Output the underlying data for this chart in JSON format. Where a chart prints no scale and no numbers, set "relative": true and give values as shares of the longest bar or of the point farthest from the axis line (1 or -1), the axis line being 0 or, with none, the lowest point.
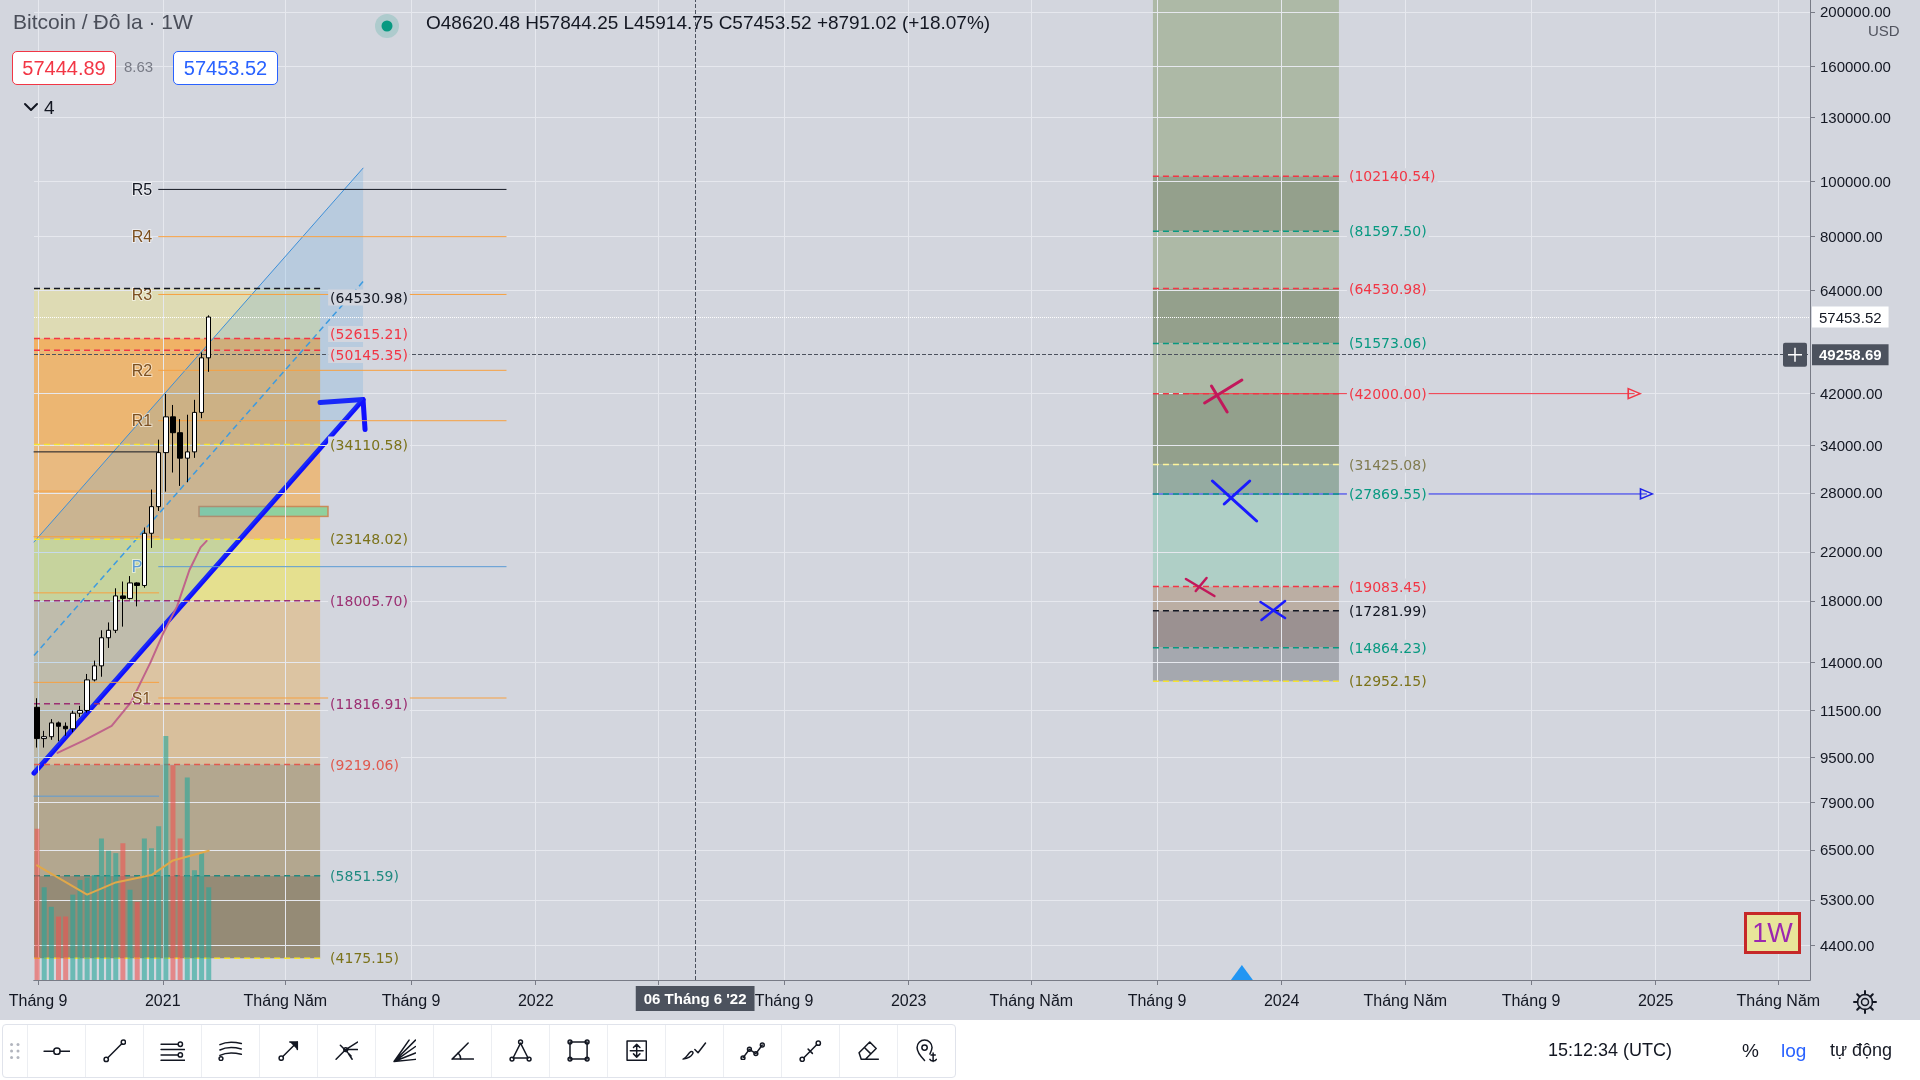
{
  "chart_data": [
    {
      "type": "candlestick",
      "title": "Bitcoin / Đô la · 1W",
      "subtitle": "O48620.48 H57844.25 L45914.75 C57453.52 +8791.02 (+18.07%)",
      "x": [
        "2020-08-31",
        "2020-09-07",
        "2020-09-14",
        "2020-09-21",
        "2020-09-28",
        "2020-10-05",
        "2020-10-12",
        "2020-10-19",
        "2020-10-26",
        "2020-11-02",
        "2020-11-09",
        "2020-11-16",
        "2020-11-23",
        "2020-11-30",
        "2020-12-07",
        "2020-12-14",
        "2020-12-21",
        "2020-12-28",
        "2021-01-04",
        "2021-01-11",
        "2021-01-18",
        "2021-01-25",
        "2021-02-01",
        "2021-02-08",
        "2021-02-15"
      ],
      "ohlc": [
        [
          11650,
          12090,
          9880,
          10250
        ],
        [
          10250,
          10580,
          9880,
          10330
        ],
        [
          10330,
          11100,
          10200,
          10930
        ],
        [
          10930,
          10990,
          10140,
          10780
        ],
        [
          10780,
          10950,
          10370,
          10670
        ],
        [
          10670,
          11490,
          10520,
          11370
        ],
        [
          11370,
          11720,
          11200,
          11500
        ],
        [
          11500,
          13350,
          11400,
          13030
        ],
        [
          13030,
          14100,
          12950,
          13800
        ],
        [
          13800,
          15960,
          13200,
          15480
        ],
        [
          15480,
          16480,
          14850,
          15960
        ],
        [
          15960,
          18950,
          15780,
          18370
        ],
        [
          18370,
          19480,
          16200,
          18180
        ],
        [
          18180,
          19920,
          18100,
          19370
        ],
        [
          19370,
          19420,
          17600,
          19170
        ],
        [
          19170,
          24300,
          19000,
          23730
        ],
        [
          23730,
          28380,
          22350,
          26460
        ],
        [
          26460,
          34800,
          26000,
          33000
        ],
        [
          33000,
          41950,
          28130,
          38200
        ],
        [
          38200,
          40100,
          30420,
          35800
        ],
        [
          35800,
          37850,
          28800,
          32260
        ],
        [
          32260,
          38530,
          29240,
          33100
        ],
        [
          33100,
          40950,
          32300,
          38900
        ],
        [
          38900,
          49700,
          37990,
          48620
        ],
        [
          48620.48,
          57844.25,
          45914.75,
          57453.52
        ]
      ],
      "colors": [
        "#000000",
        "#ffffff",
        "#ffffff",
        "#000000",
        "#000000",
        "#ffffff",
        "#ffffff",
        "#ffffff",
        "#ffffff",
        "#ffffff",
        "#ffffff",
        "#ffffff",
        "#000000",
        "#ffffff",
        "#000000",
        "#ffffff",
        "#ffffff",
        "#ffffff",
        "#ffffff",
        "#000000",
        "#000000",
        "#ffffff",
        "#ffffff",
        "#ffffff",
        "#ffffff"
      ],
      "xlim": [
        "2020-08-28",
        "2025-06-01"
      ],
      "xticks": [
        {
          "value": "2020-09-01",
          "label": "Tháng 9"
        },
        {
          "value": "2021-01-01",
          "label": "2021"
        },
        {
          "value": "2021-05-01",
          "label": "Tháng Năm"
        },
        {
          "value": "2021-09-01",
          "label": "Tháng 9"
        },
        {
          "value": "2022-01-01",
          "label": "2022"
        },
        {
          "value": "2022-05-01",
          "label": null
        },
        {
          "value": "2022-09-01",
          "label": "Tháng 9"
        },
        {
          "value": "2023-01-01",
          "label": "2023"
        },
        {
          "value": "2023-05-01",
          "label": "Tháng Năm"
        },
        {
          "value": "2023-09-01",
          "label": "Tháng 9"
        },
        {
          "value": "2024-01-01",
          "label": "2024"
        },
        {
          "value": "2024-05-01",
          "label": "Tháng Năm"
        },
        {
          "value": "2024-09-01",
          "label": "Tháng 9"
        },
        {
          "value": "2025-01-01",
          "label": "2025"
        },
        {
          "value": "2025-05-01",
          "label": "Tháng Năm"
        }
      ],
      "ylim": [
        3820,
        210000
      ],
      "yticks": [
        {
          "value": 4400,
          "label": "4400.00"
        },
        {
          "value": 5300,
          "label": "5300.00"
        },
        {
          "value": 6500,
          "label": "6500.00"
        },
        {
          "value": 7900,
          "label": "7900.00"
        },
        {
          "value": 9500,
          "label": "9500.00"
        },
        {
          "value": 11500,
          "label": "11500.00"
        },
        {
          "value": 14000,
          "label": "14000.00"
        },
        {
          "value": 18000,
          "label": "18000.00"
        },
        {
          "value": 22000,
          "label": "22000.00"
        },
        {
          "value": 28000,
          "label": "28000.00"
        },
        {
          "value": 34000,
          "label": "34000.00"
        },
        {
          "value": 42000,
          "label": "42000.00"
        },
        {
          "value": 64000,
          "label": "64000.00"
        },
        {
          "value": 80000,
          "label": "80000.00"
        },
        {
          "value": 100000,
          "label": "100000.00"
        },
        {
          "value": 130000,
          "label": "130000.00"
        },
        {
          "value": 160000,
          "label": "160000.00"
        },
        {
          "value": 200000,
          "label": "200000.00"
        }
      ],
      "log": "y",
      "grid": true,
      "series": [
        {
          "type": "line",
          "x": [
            "2020-08-28",
            "2021-07-16"
          ],
          "values": [
            22900,
            105600
          ],
          "color": "#3d8fd8"
        },
        {
          "type": "line",
          "x": [
            "2020-08-28",
            "2021-07-16"
          ],
          "values": [
            14400,
            66400
          ],
          "lower": [
            8900,
            41000
          ],
          "upper": [
            22900,
            105600
          ],
          "color": "#3d9be0",
          "line_style": "dashed"
        },
        {
          "type": "line",
          "x": [
            "2023-09-27",
            "2024-12-11"
          ],
          "values": [
            42000,
            42000
          ],
          "color": "#f23645",
          "marker": "triangle"
        },
        {
          "type": "line",
          "x": [
            "2023-08-28",
            "2024-12-23"
          ],
          "values": [
            27869.55,
            27869.55
          ],
          "color": "#1e22e8",
          "marker": "triangle"
        },
        {
          "type": "line",
          "x": [
            "2020-08-28",
            "2020-12-28"
          ],
          "values": [
            33100,
            33100
          ],
          "color": "#131722"
        },
        {
          "type": "line",
          "x": [
            "2020-08-28",
            "2020-12-28"
          ],
          "values": [
            28200,
            28200
          ],
          "color": "#f7a040"
        },
        {
          "type": "line",
          "x": [
            "2020-08-28",
            "2020-12-28"
          ],
          "values": [
            23400,
            23400
          ],
          "color": "#f7a040"
        },
        {
          "type": "line",
          "x": [
            "2020-08-28",
            "2020-12-28"
          ],
          "values": [
            18600,
            18600
          ],
          "color": "#f7a040"
        },
        {
          "type": "line",
          "x": [
            "2020-08-28",
            "2020-12-28"
          ],
          "values": [
            12900,
            12900
          ],
          "color": "#f7a040"
        },
        {
          "type": "line",
          "x": [
            "2020-08-28",
            "2020-12-28"
          ],
          "values": [
            8100,
            8100
          ],
          "color": "#5b9bd5"
        },
        {
          "type": "line",
          "name": "R5",
          "x": [
            "2020-12-28",
            "2021-12-03"
          ],
          "values": [
            96800,
            96800
          ],
          "color": "#131722"
        },
        {
          "type": "line",
          "name": "R4",
          "x": [
            "2020-12-28",
            "2021-12-03"
          ],
          "values": [
            79800,
            79800
          ],
          "color": "#f7a040"
        },
        {
          "type": "line",
          "name": "R3",
          "x": [
            "2020-12-28",
            "2021-12-03"
          ],
          "values": [
            63000,
            63000
          ],
          "color": "#f7a040"
        },
        {
          "type": "line",
          "name": "R2",
          "x": [
            "2020-12-28",
            "2021-12-03"
          ],
          "values": [
            46200,
            46200
          ],
          "color": "#f7a040"
        },
        {
          "type": "line",
          "name": "R1",
          "x": [
            "2020-12-28",
            "2021-12-03"
          ],
          "values": [
            37600,
            37600
          ],
          "color": "#f7a040"
        },
        {
          "type": "line",
          "name": "P",
          "x": [
            "2020-12-28",
            "2021-12-03"
          ],
          "values": [
            20700,
            20700
          ],
          "color": "#5b9bd5"
        },
        {
          "type": "line",
          "name": "S1",
          "x": [
            "2020-12-28",
            "2021-12-03"
          ],
          "values": [
            12100,
            12100
          ],
          "color": "#f7a040"
        },
        {
          "type": "line",
          "x": [
            "2020-08-28",
            "2021-06-04"
          ],
          "values": [
            64530.98,
            64530.98
          ],
          "value_labels": [
            null,
            "(64530.98)"
          ],
          "color": "#131722",
          "line_style": "dashed"
        },
        {
          "type": "line",
          "x": [
            "2020-08-28",
            "2021-06-04"
          ],
          "values": [
            52615.21,
            52615.21
          ],
          "value_labels": [
            null,
            "(52615.21)"
          ],
          "color": "#f23645",
          "line_style": "dashed"
        },
        {
          "type": "line",
          "x": [
            "2020-08-28",
            "2021-06-04"
          ],
          "values": [
            50145.35,
            50145.35
          ],
          "value_labels": [
            null,
            "(50145.35)"
          ],
          "color": "#f23645",
          "line_style": "dashed"
        },
        {
          "type": "line",
          "x": [
            "2020-08-28",
            "2021-06-04"
          ],
          "values": [
            34110.58,
            34110.58
          ],
          "value_labels": [
            null,
            "(34110.58)"
          ],
          "color": "#f5e332",
          "line_style": "dashed"
        },
        {
          "type": "line",
          "x": [
            "2020-08-28",
            "2021-06-04"
          ],
          "values": [
            23148.02,
            23148.02
          ],
          "value_labels": [
            null,
            "(23148.02)"
          ],
          "color": "#f5e332",
          "line_style": "dashed"
        },
        {
          "type": "line",
          "x": [
            "2020-08-28",
            "2021-06-04"
          ],
          "values": [
            18005.7,
            18005.7
          ],
          "value_labels": [
            null,
            "(18005.70)"
          ],
          "color": "#9b2f72",
          "line_style": "dashed"
        },
        {
          "type": "line",
          "x": [
            "2020-08-28",
            "2021-06-04"
          ],
          "values": [
            11816.91,
            11816.91
          ],
          "value_labels": [
            null,
            "(11816.91)"
          ],
          "color": "#9b2f72",
          "line_style": "dashed"
        },
        {
          "type": "line",
          "x": [
            "2020-08-28",
            "2021-06-04"
          ],
          "values": [
            9219.06,
            9219.06
          ],
          "value_labels": [
            null,
            "(9219.06)"
          ],
          "color": "#e05a4f",
          "line_style": "dashed"
        },
        {
          "type": "line",
          "x": [
            "2020-08-28",
            "2021-06-04"
          ],
          "values": [
            5851.59,
            5851.59
          ],
          "value_labels": [
            null,
            "(5851.59)"
          ],
          "color": "#1f8a80",
          "line_style": "dashed"
        },
        {
          "type": "line",
          "x": [
            "2020-08-28",
            "2021-06-04"
          ],
          "values": [
            4175.15,
            4175.15
          ],
          "value_labels": [
            null,
            "(4175.15)"
          ],
          "color": "#f5e332",
          "line_style": "dashed"
        },
        {
          "type": "line",
          "x": [
            "2023-08-28",
            "2024-02-26"
          ],
          "values": [
            102140.54,
            102140.54
          ],
          "value_labels": [
            null,
            "(102140.54)"
          ],
          "color": "#f23645",
          "line_style": "dashed"
        },
        {
          "type": "line",
          "x": [
            "2023-08-28",
            "2024-02-26"
          ],
          "values": [
            81597.5,
            81597.5
          ],
          "value_labels": [
            null,
            "(81597.50)"
          ],
          "color": "#089981",
          "line_style": "dashed"
        },
        {
          "type": "line",
          "x": [
            "2023-08-28",
            "2024-02-26"
          ],
          "values": [
            64530.98,
            64530.98
          ],
          "value_labels": [
            null,
            "(64530.98)"
          ],
          "color": "#f23645",
          "line_style": "dashed"
        },
        {
          "type": "line",
          "x": [
            "2023-08-28",
            "2024-02-26"
          ],
          "values": [
            51573.06,
            51573.06
          ],
          "value_labels": [
            null,
            "(51573.06)"
          ],
          "color": "#089981",
          "line_style": "dashed"
        },
        {
          "type": "line",
          "x": [
            "2023-08-28",
            "2024-02-26"
          ],
          "values": [
            42000,
            42000
          ],
          "value_labels": [
            null,
            "(42000.00)"
          ],
          "color": "#f23645",
          "line_style": "dashed"
        },
        {
          "type": "line",
          "x": [
            "2023-08-28",
            "2024-02-26"
          ],
          "values": [
            31425.08,
            31425.08
          ],
          "value_labels": [
            null,
            "(31425.08)"
          ],
          "color": "#fff59d",
          "line_style": "dashed"
        },
        {
          "type": "line",
          "x": [
            "2023-08-28",
            "2024-02-26"
          ],
          "values": [
            27869.55,
            27869.55
          ],
          "value_labels": [
            null,
            "(27869.55)"
          ],
          "color": "#089981",
          "line_style": "dashed"
        },
        {
          "type": "line",
          "x": [
            "2023-08-28",
            "2024-02-26"
          ],
          "values": [
            19083.45,
            19083.45
          ],
          "value_labels": [
            null,
            "(19083.45)"
          ],
          "color": "#f23645",
          "line_style": "dashed"
        },
        {
          "type": "line",
          "x": [
            "2023-08-28",
            "2024-02-26"
          ],
          "values": [
            17281.99,
            17281.99
          ],
          "value_labels": [
            null,
            "(17281.99)"
          ],
          "color": "#131722",
          "line_style": "dashed"
        },
        {
          "type": "line",
          "x": [
            "2023-08-28",
            "2024-02-26"
          ],
          "values": [
            14864.23,
            14864.23
          ],
          "value_labels": [
            null,
            "(14864.23)"
          ],
          "color": "#089981",
          "line_style": "dashed"
        },
        {
          "type": "line",
          "x": [
            "2023-08-28",
            "2024-02-26"
          ],
          "values": [
            12952.15,
            12952.15
          ],
          "value_labels": [
            null,
            "(12952.15)"
          ],
          "color": "#f5e332",
          "line_style": "dashed"
        },
        {
          "type": "line",
          "x": [
            "2020-09-20",
            "2020-10-17",
            "2020-11-12",
            "2020-12-01",
            "2020-12-20",
            "2021-01-01",
            "2021-01-15",
            "2021-01-27",
            "2021-02-07",
            "2021-02-13"
          ],
          "values": [
            9670,
            10200,
            10800,
            11900,
            14000,
            15700,
            17600,
            20400,
            22400,
            23000
          ],
          "color": "#c0648a"
        }
      ],
      "ref_lines": [
        {
          "axis": "y",
          "value": 57453.52,
          "label": "57453.52",
          "color": "#ffffff",
          "line_style": "dotted"
        },
        {
          "axis": "y",
          "value": 49258.69,
          "label": "49258.69",
          "color": "#4c525e",
          "line_style": "dashed"
        },
        {
          "axis": "x",
          "value": "2022-06-06",
          "label": "06 Tháng 6 '22",
          "color": "#4c525e",
          "line_style": "dashed"
        }
      ],
      "annotations": [
        "57444.89",
        "8.63",
        "57453.52",
        "4",
        "USD",
        "1W",
        "15:12:34 (UTC)",
        "%",
        "log",
        "tự động"
      ]
    },
    {
      "type": "bar",
      "relative": true,
      "xlim": [
        "2020-08-28",
        "2025-06-01"
      ],
      "series": [
        {
          "x": [
            "2020-08-31",
            "2020-09-07",
            "2020-09-14",
            "2020-09-21",
            "2020-09-28",
            "2020-10-05",
            "2020-10-12",
            "2020-10-19",
            "2020-10-26",
            "2020-11-02",
            "2020-11-09",
            "2020-11-16",
            "2020-11-23",
            "2020-11-30",
            "2020-12-07",
            "2020-12-14",
            "2020-12-21",
            "2020-12-28",
            "2021-01-04",
            "2021-01-11",
            "2021-01-18",
            "2021-01-25",
            "2021-02-01",
            "2021-02-08",
            "2021-02-15"
          ],
          "values": [
            0.62,
            0.38,
            0.3,
            0.26,
            0.26,
            0.35,
            0.41,
            0.42,
            0.43,
            0.58,
            0.53,
            0.52,
            0.56,
            0.37,
            0.32,
            0.58,
            0.54,
            0.63,
            1,
            0.88,
            0.58,
            0.83,
            0.45,
            0.52,
            0.38
          ],
          "colors": [
            "#ef5350",
            "#26a69a",
            "#26a69a",
            "#ef5350",
            "#ef5350",
            "#26a69a",
            "#26a69a",
            "#26a69a",
            "#26a69a",
            "#26a69a",
            "#26a69a",
            "#26a69a",
            "#ef5350",
            "#26a69a",
            "#ef5350",
            "#26a69a",
            "#26a69a",
            "#26a69a",
            "#26a69a",
            "#ef5350",
            "#ef5350",
            "#26a69a",
            "#26a69a",
            "#26a69a",
            "#26a69a"
          ]
        },
        {
          "type": "line",
          "x": [
            "2020-08-31",
            "2020-10-19",
            "2020-11-16",
            "2020-12-21",
            "2021-01-11",
            "2021-02-15"
          ],
          "values": [
            0.47,
            0.35,
            0.4,
            0.43,
            0.49,
            0.53
          ],
          "color": "#e0a84a"
        }
      ]
    }
  ]
}
